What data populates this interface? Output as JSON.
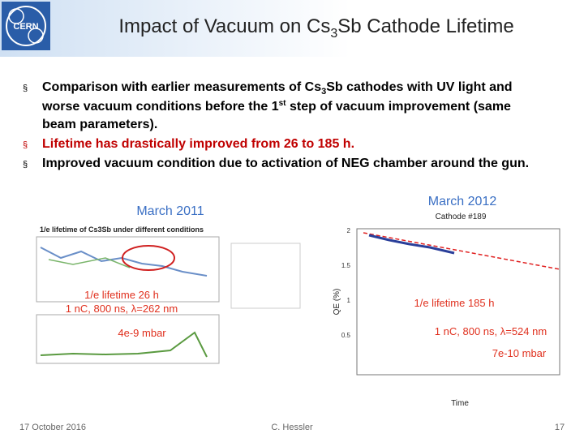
{
  "header": {
    "title": [
      "Impact of Vacuum on Cs",
      "3",
      "Sb Cathode Lifetime"
    ]
  },
  "bullets": [
    {
      "lines": [
        [
          "Comparison with earlier measurements of Cs",
          "3",
          "Sb cathodes with UV light and"
        ],
        [
          "worse vacuum conditions before the 1",
          "st",
          " step of vacuum improvement (same"
        ],
        [
          "beam parameters)."
        ]
      ]
    },
    {
      "lines": [
        [
          "Lifetime has drastically improved from 26 to 185 h."
        ]
      ]
    },
    {
      "lines": [
        [
          "Improved vacuum condition due to activation of NEG chamber around the gun."
        ]
      ]
    }
  ],
  "figures": {
    "left": {
      "heading": "March 2011",
      "chart_title": "1/e lifetime of Cs3Sb under different conditions",
      "notes": [
        "1/e lifetime 26 h",
        "1 nC, 800 ns, λ=262 nm",
        "4e-9 mbar"
      ]
    },
    "right": {
      "heading": "March 2012",
      "chart_title": "Cathode #189",
      "y_label": "QE (%)",
      "x_label": "Time",
      "yticks": [
        "2",
        "1.5",
        "1",
        "0.5"
      ],
      "notes": [
        "1/e lifetime 185 h",
        "1 nC, 800 ns, λ=524 nm",
        "7e-10 mbar"
      ]
    }
  },
  "footer": {
    "date": "17 October 2016",
    "author": "C. Hessler",
    "page": "17"
  }
}
